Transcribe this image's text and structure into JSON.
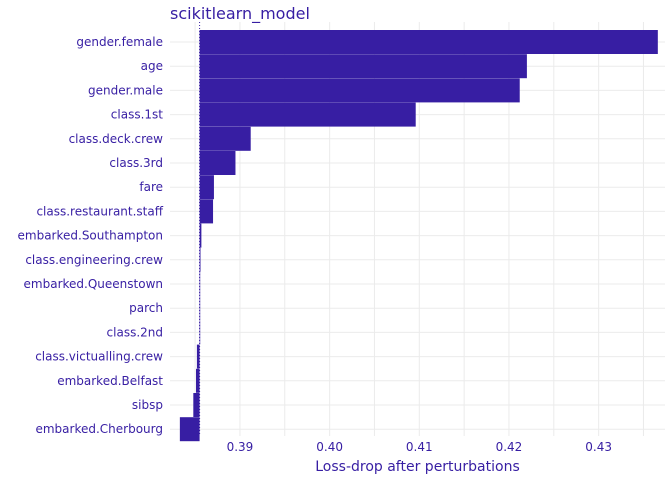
{
  "chart_data": {
    "type": "bar",
    "orientation": "horizontal",
    "title": "scikitlearn_model",
    "xlabel": "Loss-drop after perturbations",
    "ylabel": "",
    "baseline": 0.3855,
    "xlim": [
      0.3822,
      0.4374
    ],
    "xticks": [
      0.39,
      0.4,
      0.41,
      0.42,
      0.43
    ],
    "xtick_labels": [
      "0.39",
      "0.40",
      "0.41",
      "0.42",
      "0.43"
    ],
    "bar_color": "#371ea3",
    "grid": true,
    "categories": [
      "gender.female",
      "age",
      "gender.male",
      "class.1st",
      "class.deck.crew",
      "class.3rd",
      "fare",
      "class.restaurant.staff",
      "embarked.Southampton",
      "class.engineering.crew",
      "embarked.Queenstown",
      "parch",
      "class.2nd",
      "class.victualling.crew",
      "embarked.Belfast",
      "sibsp",
      "embarked.Cherbourg"
    ],
    "values": [
      0.4366,
      0.422,
      0.4212,
      0.4096,
      0.3912,
      0.3895,
      0.3871,
      0.387,
      0.3857,
      0.3856,
      0.3855,
      0.3855,
      0.3855,
      0.3852,
      0.3851,
      0.3848,
      0.3833
    ]
  }
}
